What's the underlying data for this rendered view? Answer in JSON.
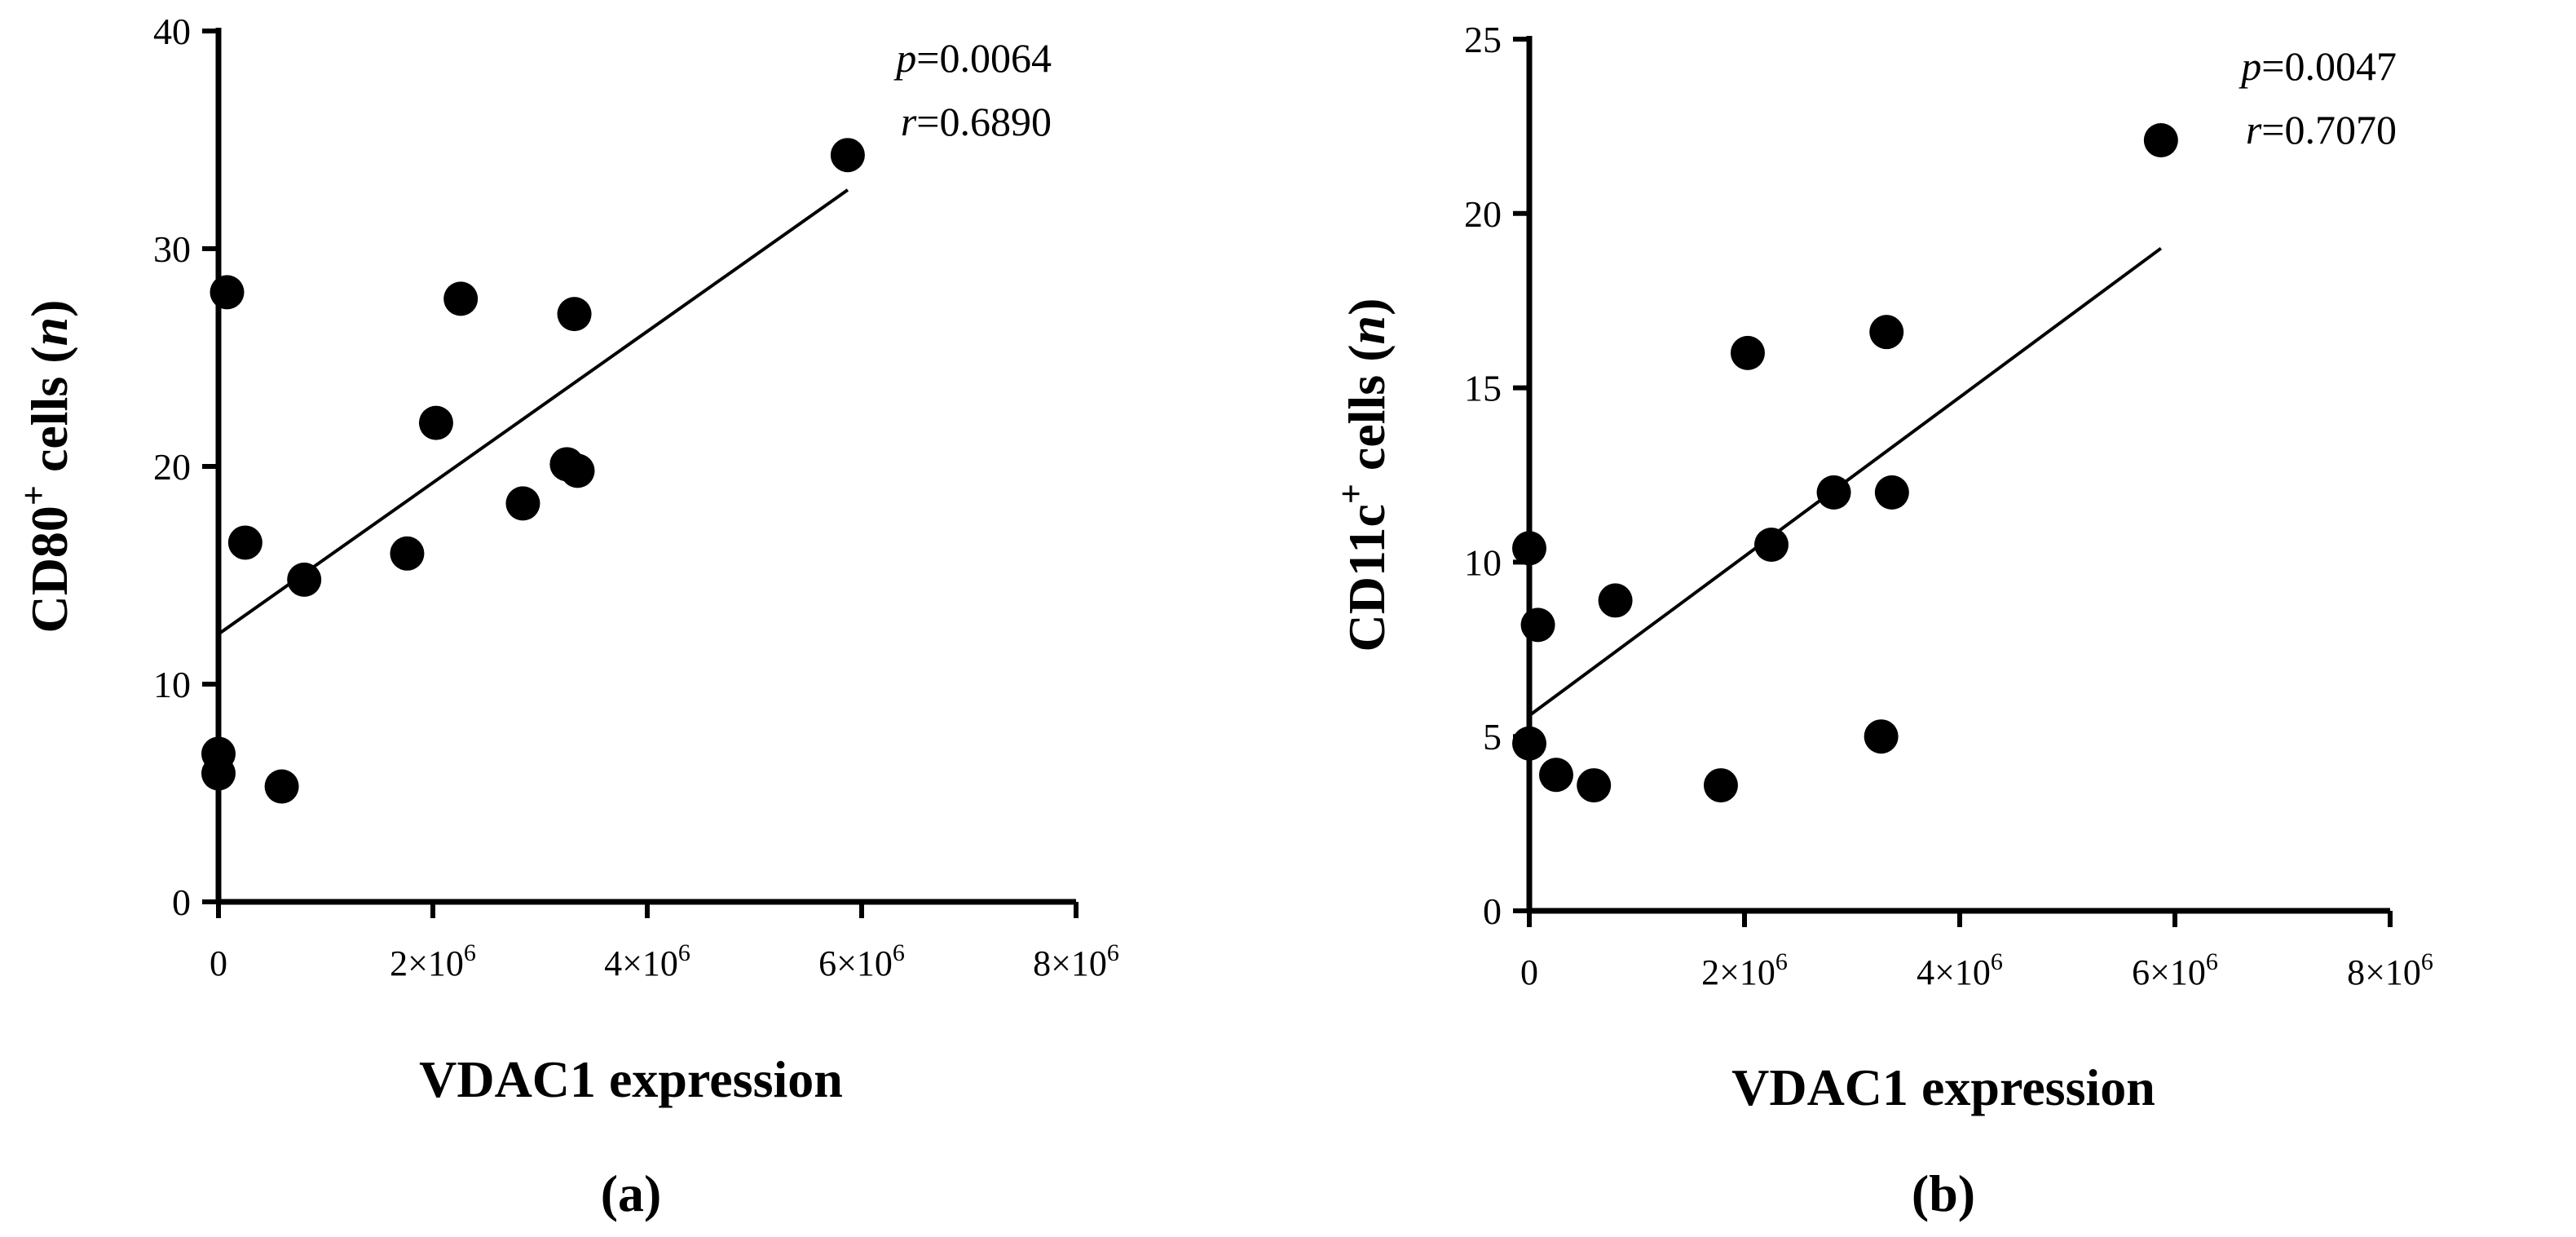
{
  "chart_data": [
    {
      "type": "scatter",
      "panel_label": "(a)",
      "xlabel": "VDAC1 expression",
      "ylabel_main": "CD80",
      "ylabel_sup": "+",
      "ylabel_rest": " cells (",
      "ylabel_var": "n",
      "ylabel_close": ")",
      "xlim": [
        0,
        8000000
      ],
      "ylim": [
        0,
        40
      ],
      "x_ticks": [
        0,
        2000000,
        4000000,
        6000000,
        8000000
      ],
      "x_tick_labels": [
        "0",
        "2×10",
        "4×10",
        "6×10",
        "8×10"
      ],
      "x_tick_exp": [
        "",
        "6",
        "6",
        "6",
        "6"
      ],
      "y_ticks": [
        0,
        10,
        20,
        30,
        40
      ],
      "y_tick_labels": [
        "0",
        "10",
        "20",
        "30",
        "40"
      ],
      "stats": {
        "p_var": "p",
        "p_text": "=0.0064",
        "r_var": "r",
        "r_text": "=0.6890"
      },
      "fit": {
        "x": [
          0,
          5870000
        ],
        "y": [
          12.3,
          32.7
        ]
      },
      "points": [
        {
          "x": 80000,
          "y": 28.0
        },
        {
          "x": 250000,
          "y": 16.5
        },
        {
          "x": 800000,
          "y": 14.8
        },
        {
          "x": 0,
          "y": 6.8
        },
        {
          "x": 0,
          "y": 5.9
        },
        {
          "x": 590000,
          "y": 5.3
        },
        {
          "x": 1760000,
          "y": 16.0
        },
        {
          "x": 2030000,
          "y": 22.0
        },
        {
          "x": 2260000,
          "y": 27.7
        },
        {
          "x": 2840000,
          "y": 18.3
        },
        {
          "x": 3250000,
          "y": 20.1
        },
        {
          "x": 3350000,
          "y": 19.8
        },
        {
          "x": 3320000,
          "y": 27.0
        },
        {
          "x": 5870000,
          "y": 34.3
        }
      ]
    },
    {
      "type": "scatter",
      "panel_label": "(b)",
      "xlabel": "VDAC1 expression",
      "ylabel_main": "CD11c",
      "ylabel_sup": "+",
      "ylabel_rest": " cells (",
      "ylabel_var": "n",
      "ylabel_close": ")",
      "xlim": [
        0,
        8000000
      ],
      "ylim": [
        0,
        25
      ],
      "x_ticks": [
        0,
        2000000,
        4000000,
        6000000,
        8000000
      ],
      "x_tick_labels": [
        "0",
        "2×10",
        "4×10",
        "6×10",
        "8×10"
      ],
      "x_tick_exp": [
        "",
        "6",
        "6",
        "6",
        "6"
      ],
      "y_ticks": [
        0,
        5,
        10,
        15,
        20,
        25
      ],
      "y_tick_labels": [
        "0",
        "5",
        "10",
        "15",
        "20",
        "25"
      ],
      "stats": {
        "p_var": "p",
        "p_text": "=0.0047",
        "r_var": "r",
        "r_text": "=0.7070"
      },
      "fit": {
        "x": [
          0,
          5870000
        ],
        "y": [
          5.6,
          19.0
        ]
      },
      "points": [
        {
          "x": 0,
          "y": 10.4
        },
        {
          "x": 80000,
          "y": 8.2
        },
        {
          "x": 0,
          "y": 4.8
        },
        {
          "x": 250000,
          "y": 3.9
        },
        {
          "x": 600000,
          "y": 3.6
        },
        {
          "x": 800000,
          "y": 8.9
        },
        {
          "x": 1780000,
          "y": 3.6
        },
        {
          "x": 2030000,
          "y": 16.0
        },
        {
          "x": 2250000,
          "y": 10.5
        },
        {
          "x": 2830000,
          "y": 12.0
        },
        {
          "x": 3270000,
          "y": 5.0
        },
        {
          "x": 3320000,
          "y": 16.6
        },
        {
          "x": 3370000,
          "y": 12.0
        },
        {
          "x": 5870000,
          "y": 22.1
        }
      ]
    }
  ]
}
